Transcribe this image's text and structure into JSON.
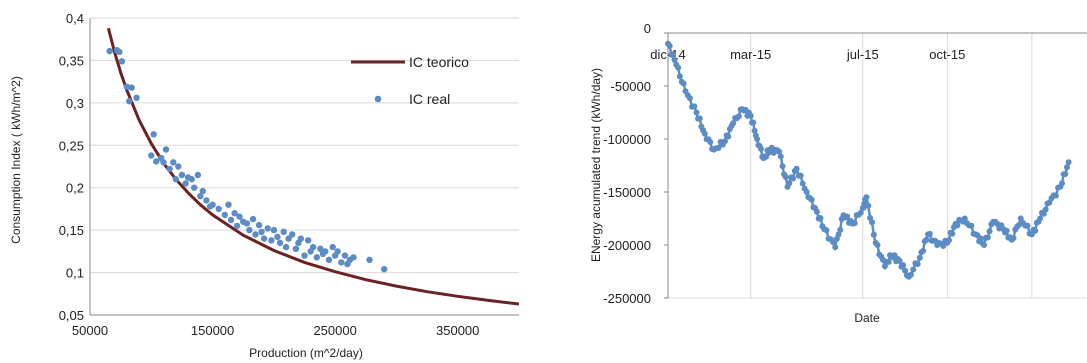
{
  "chart_data": [
    {
      "type": "scatter",
      "xlabel": "Production (m^2/day)",
      "ylabel": "Consumption Index ( kWh/m^2)",
      "xlim": [
        50000,
        400000
      ],
      "ylim": [
        0.05,
        0.4
      ],
      "x_ticks": [
        "50000",
        "150000",
        "250000",
        "350000"
      ],
      "y_ticks": [
        "0,05",
        "0,1",
        "0,15",
        "0,2",
        "0,25",
        "0,3",
        "0,35",
        "0,4"
      ],
      "grid": "horizontal",
      "legend_position": "top-right",
      "colors": {
        "fit": "#6B2222",
        "points": "#5B8CC6"
      },
      "series": [
        {
          "name": "IC teorico",
          "type": "line",
          "x": [
            65000,
            70000,
            75000,
            80000,
            90000,
            100000,
            110000,
            120000,
            130000,
            140000,
            150000,
            175000,
            200000,
            225000,
            250000,
            275000,
            300000,
            325000,
            350000,
            375000,
            400000
          ],
          "y": [
            0.388,
            0.36,
            0.336,
            0.315,
            0.28,
            0.252,
            0.229,
            0.21,
            0.194,
            0.18,
            0.168,
            0.144,
            0.126,
            0.112,
            0.101,
            0.0916,
            0.084,
            0.0775,
            0.072,
            0.0672,
            0.063
          ]
        },
        {
          "name": "IC real",
          "type": "scatter",
          "x": [
            66000,
            72000,
            74000,
            76000,
            80000,
            82000,
            84000,
            88000,
            100000,
            102000,
            104000,
            108000,
            110000,
            112000,
            115000,
            118000,
            120000,
            122000,
            125000,
            128000,
            130000,
            133000,
            135000,
            138000,
            140000,
            142000,
            145000,
            148000,
            150000,
            155000,
            160000,
            163000,
            165000,
            168000,
            170000,
            172000,
            175000,
            178000,
            180000,
            183000,
            185000,
            188000,
            190000,
            192000,
            195000,
            198000,
            200000,
            203000,
            205000,
            208000,
            210000,
            212000,
            215000,
            218000,
            220000,
            222000,
            225000,
            228000,
            230000,
            232000,
            235000,
            238000,
            240000,
            242000,
            245000,
            248000,
            250000,
            252000,
            255000,
            258000,
            260000,
            262000,
            265000,
            278000,
            290000
          ],
          "y": [
            0.361,
            0.362,
            0.36,
            0.349,
            0.319,
            0.302,
            0.318,
            0.306,
            0.238,
            0.263,
            0.231,
            0.235,
            0.23,
            0.245,
            0.222,
            0.23,
            0.21,
            0.225,
            0.215,
            0.205,
            0.212,
            0.21,
            0.2,
            0.215,
            0.19,
            0.196,
            0.185,
            0.178,
            0.18,
            0.175,
            0.168,
            0.18,
            0.162,
            0.17,
            0.155,
            0.166,
            0.16,
            0.158,
            0.15,
            0.163,
            0.145,
            0.156,
            0.148,
            0.14,
            0.152,
            0.138,
            0.15,
            0.142,
            0.135,
            0.148,
            0.13,
            0.14,
            0.145,
            0.128,
            0.135,
            0.14,
            0.12,
            0.138,
            0.125,
            0.13,
            0.118,
            0.128,
            0.122,
            0.125,
            0.115,
            0.13,
            0.12,
            0.125,
            0.112,
            0.12,
            0.11,
            0.115,
            0.118,
            0.115,
            0.104
          ]
        }
      ]
    },
    {
      "type": "line",
      "xlabel": "Date",
      "ylabel": "ENergy acumulated trend (kWh/day)",
      "xlim": [
        "2014-12",
        "2016-03"
      ],
      "ylim": [
        -250000,
        0
      ],
      "x_ticks": [
        "dic-14",
        "mar-15",
        "jul-15",
        "oct-15"
      ],
      "y_ticks": [
        "0",
        "-50000",
        "-100000",
        "-150000",
        "-200000",
        "-250000"
      ],
      "grid": "vertical",
      "colors": {
        "series": "#5B8CC6"
      },
      "series": [
        {
          "x": [
            "2014-12-01",
            "2014-12-10",
            "2014-12-20",
            "2015-01-01",
            "2015-01-10",
            "2015-01-20",
            "2015-02-01",
            "2015-02-10",
            "2015-02-20",
            "2015-03-01",
            "2015-03-08",
            "2015-03-15",
            "2015-03-22",
            "2015-04-01",
            "2015-04-10",
            "2015-04-20",
            "2015-05-01",
            "2015-05-10",
            "2015-05-20",
            "2015-06-01",
            "2015-06-10",
            "2015-06-20",
            "2015-07-01",
            "2015-07-05",
            "2015-07-15",
            "2015-07-25",
            "2015-08-01",
            "2015-08-10",
            "2015-08-20",
            "2015-09-01",
            "2015-09-10",
            "2015-09-20",
            "2015-10-01",
            "2015-10-10",
            "2015-10-20",
            "2015-11-01",
            "2015-11-10",
            "2015-11-20",
            "2015-12-01",
            "2015-12-10",
            "2015-12-20",
            "2016-01-01",
            "2016-01-10",
            "2016-01-20",
            "2016-02-01",
            "2016-02-10"
          ],
          "y": [
            -10000,
            -30000,
            -55000,
            -75000,
            -95000,
            -110000,
            -102000,
            -85000,
            -72000,
            -78000,
            -100000,
            -118000,
            -110000,
            -112000,
            -145000,
            -128000,
            -150000,
            -165000,
            -185000,
            -202000,
            -172000,
            -180000,
            -165000,
            -155000,
            -198000,
            -220000,
            -210000,
            -215000,
            -230000,
            -212000,
            -190000,
            -200000,
            -198000,
            -180000,
            -175000,
            -190000,
            -200000,
            -178000,
            -185000,
            -195000,
            -175000,
            -190000,
            -175000,
            -160000,
            -145000,
            -122000
          ]
        }
      ]
    }
  ]
}
